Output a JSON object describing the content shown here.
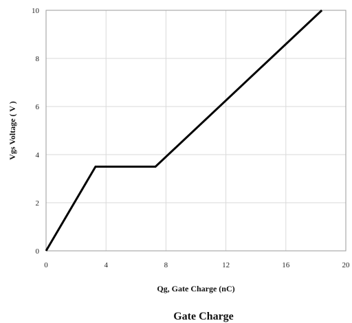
{
  "chart_data": {
    "type": "line",
    "title": "Gate Charge",
    "xlabel": "Qg, Gate Charge (nC)",
    "ylabel": "Vgs Voltage ( V )",
    "xlim": [
      0,
      20
    ],
    "ylim": [
      0,
      10
    ],
    "xticks": [
      0,
      4,
      8,
      12,
      16,
      20
    ],
    "yticks": [
      0,
      2,
      4,
      6,
      8,
      10
    ],
    "grid": true,
    "series": [
      {
        "x": [
          0,
          3.3,
          7.3,
          18.4
        ],
        "y": [
          0,
          3.5,
          3.5,
          10
        ],
        "color": "#000000"
      }
    ]
  }
}
